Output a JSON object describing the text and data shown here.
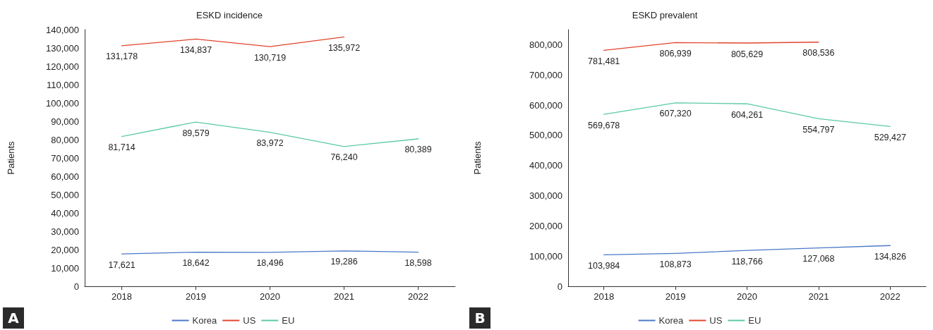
{
  "chart_data": [
    {
      "type": "line",
      "title": "ESKD incidence",
      "ylabel": "Patients",
      "categories": [
        "2018",
        "2019",
        "2020",
        "2021",
        "2022"
      ],
      "series": [
        {
          "name": "Korea",
          "color": "#4a78c8",
          "values": [
            17621,
            18642,
            18496,
            19286,
            18598
          ],
          "value_labels": [
            "17,621",
            "18,642",
            "18,496",
            "19,286",
            "18,598"
          ]
        },
        {
          "name": "US",
          "color": "#e0452e",
          "values": [
            131178,
            134837,
            130719,
            135972,
            null
          ],
          "value_labels": [
            "131,178",
            "134,837",
            "130,719",
            "135,972",
            null
          ]
        },
        {
          "name": "EU",
          "color": "#5cc9a7",
          "values": [
            81714,
            89579,
            83972,
            76240,
            80389
          ],
          "value_labels": [
            "81,714",
            "89,579",
            "83,972",
            "76,240",
            "80,389"
          ]
        }
      ],
      "ylim": [
        0,
        140000
      ],
      "yticks": [
        0,
        {
          "value": 10000,
          "label": "10,000"
        },
        {
          "value": 20000,
          "label": "20,000"
        },
        {
          "value": 30000,
          "label": "30,000"
        },
        {
          "value": 40000,
          "label": "40,000"
        },
        {
          "value": 50000,
          "label": "50,000"
        },
        {
          "value": 60000,
          "label": "60,000"
        },
        {
          "value": 70000,
          "label": "70,000"
        },
        {
          "value": 80000,
          "label": "80,000"
        },
        {
          "value": 90000,
          "label": "90,000"
        },
        {
          "value": 100000,
          "label": "100,000"
        },
        {
          "value": 110000,
          "label": "110,000"
        },
        {
          "value": 120000,
          "label": "120,000"
        },
        {
          "value": 130000,
          "label": "130,000"
        },
        {
          "value": 140000,
          "label": "140,000"
        }
      ],
      "legend": "bottom",
      "grid": false,
      "marker": "none",
      "annotations": [
        "A"
      ]
    },
    {
      "type": "line",
      "title": "ESKD prevalent",
      "ylabel": "Patients",
      "categories": [
        "2018",
        "2019",
        "2020",
        "2021",
        "2022"
      ],
      "series": [
        {
          "name": "Korea",
          "color": "#4a78c8",
          "values": [
            103984,
            108873,
            118766,
            127068,
            134826
          ],
          "value_labels": [
            "103,984",
            "108,873",
            "118,766",
            "127,068",
            "134,826"
          ]
        },
        {
          "name": "US",
          "color": "#e0452e",
          "values": [
            781481,
            806939,
            805629,
            808536,
            null
          ],
          "value_labels": [
            "781,481",
            "806,939",
            "805,629",
            "808,536",
            null
          ]
        },
        {
          "name": "EU",
          "color": "#5cc9a7",
          "values": [
            569678,
            607320,
            604261,
            554797,
            529427
          ],
          "value_labels": [
            "569,678",
            "607,320",
            "604,261",
            "554,797",
            "529,427"
          ]
        }
      ],
      "ylim": [
        0,
        850000
      ],
      "yticks": [
        0,
        {
          "value": 100000,
          "label": "100,000"
        },
        {
          "value": 200000,
          "label": "200,000"
        },
        {
          "value": 300000,
          "label": "300,000"
        },
        {
          "value": 400000,
          "label": "400,000"
        },
        {
          "value": 500000,
          "label": "500,000"
        },
        {
          "value": 600000,
          "label": "600,000"
        },
        {
          "value": 700000,
          "label": "700,000"
        },
        {
          "value": 800000,
          "label": "800,000"
        }
      ],
      "legend": "bottom",
      "grid": false,
      "marker": "none",
      "annotations": [
        "B"
      ]
    }
  ]
}
